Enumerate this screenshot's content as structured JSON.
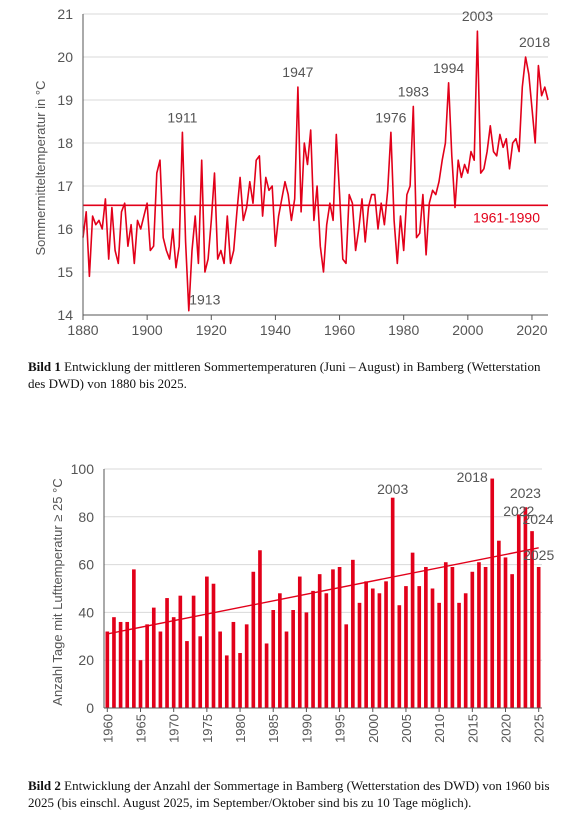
{
  "colors": {
    "line": "#e2001a",
    "bar": "#e2001a",
    "axis": "#555555",
    "text": "#555555"
  },
  "captions": {
    "bild1_label": "Bild 1",
    "bild1_text": " Entwicklung der mittleren Sommertemperaturen (Juni – August) in Bamberg (Wetter­station des DWD) von 1880 bis 2025.",
    "bild2_label": "Bild 2",
    "bild2_text": " Entwicklung der Anzahl der Sommertage in Bamberg (Wetterstation des DWD) von 1960 bis 2025 (bis einschl. August 2025, im September/Oktober sind bis zu 10 Tage mög­lich)."
  },
  "chart_data": [
    {
      "type": "line",
      "ylabel": "Sommermitteltemperatur in °C",
      "xlim": [
        1880,
        2025
      ],
      "ylim": [
        14,
        21
      ],
      "xticks": [
        1880,
        1900,
        1920,
        1940,
        1960,
        1980,
        2000,
        2020
      ],
      "yticks": [
        14,
        15,
        16,
        17,
        18,
        19,
        20,
        21
      ],
      "grid": "horizontal",
      "reference_line": {
        "label": "1961-1990",
        "value": 16.55
      },
      "annotations": [
        {
          "text": "1911",
          "x": 1911,
          "y": 18.25
        },
        {
          "text": "1913",
          "x": 1913,
          "y": 14.1
        },
        {
          "text": "1947",
          "x": 1947,
          "y": 19.3
        },
        {
          "text": "1976",
          "x": 1976,
          "y": 18.25
        },
        {
          "text": "1983",
          "x": 1983,
          "y": 18.85
        },
        {
          "text": "1994",
          "x": 1994,
          "y": 19.4
        },
        {
          "text": "2003",
          "x": 2003,
          "y": 20.6
        },
        {
          "text": "2018",
          "x": 2018,
          "y": 20.0
        }
      ],
      "x": [
        1880,
        1881,
        1882,
        1883,
        1884,
        1885,
        1886,
        1887,
        1888,
        1889,
        1890,
        1891,
        1892,
        1893,
        1894,
        1895,
        1896,
        1897,
        1898,
        1899,
        1900,
        1901,
        1902,
        1903,
        1904,
        1905,
        1906,
        1907,
        1908,
        1909,
        1910,
        1911,
        1912,
        1913,
        1914,
        1915,
        1916,
        1917,
        1918,
        1919,
        1920,
        1921,
        1922,
        1923,
        1924,
        1925,
        1926,
        1927,
        1928,
        1929,
        1930,
        1931,
        1932,
        1933,
        1934,
        1935,
        1936,
        1937,
        1938,
        1939,
        1940,
        1941,
        1942,
        1943,
        1944,
        1945,
        1946,
        1947,
        1948,
        1949,
        1950,
        1951,
        1952,
        1953,
        1954,
        1955,
        1956,
        1957,
        1958,
        1959,
        1960,
        1961,
        1962,
        1963,
        1964,
        1965,
        1966,
        1967,
        1968,
        1969,
        1970,
        1971,
        1972,
        1973,
        1974,
        1975,
        1976,
        1977,
        1978,
        1979,
        1980,
        1981,
        1982,
        1983,
        1984,
        1985,
        1986,
        1987,
        1988,
        1989,
        1990,
        1991,
        1992,
        1993,
        1994,
        1995,
        1996,
        1997,
        1998,
        1999,
        2000,
        2001,
        2002,
        2003,
        2004,
        2005,
        2006,
        2007,
        2008,
        2009,
        2010,
        2011,
        2012,
        2013,
        2014,
        2015,
        2016,
        2017,
        2018,
        2019,
        2020,
        2021,
        2022,
        2023,
        2024,
        2025
      ],
      "values": [
        15.8,
        16.4,
        14.9,
        16.3,
        16.1,
        16.2,
        16.0,
        16.7,
        15.3,
        16.5,
        15.5,
        15.2,
        16.4,
        16.6,
        15.6,
        16.1,
        15.2,
        16.2,
        16.0,
        16.3,
        16.6,
        15.5,
        15.6,
        17.3,
        17.6,
        15.8,
        15.5,
        15.3,
        16.0,
        15.1,
        15.6,
        18.25,
        15.7,
        14.1,
        15.5,
        16.3,
        15.2,
        17.6,
        15.0,
        15.3,
        16.2,
        17.3,
        15.3,
        15.5,
        15.2,
        16.3,
        15.2,
        15.5,
        16.4,
        17.2,
        16.2,
        16.5,
        17.1,
        16.6,
        17.6,
        17.7,
        16.3,
        17.2,
        16.9,
        17.0,
        15.6,
        16.3,
        16.7,
        17.1,
        16.8,
        16.2,
        16.7,
        19.3,
        16.4,
        18.0,
        17.5,
        18.3,
        16.2,
        17.0,
        15.6,
        15.0,
        16.1,
        16.6,
        16.2,
        18.2,
        16.8,
        15.3,
        15.2,
        16.8,
        16.6,
        15.5,
        16.0,
        16.7,
        15.7,
        16.5,
        16.8,
        16.8,
        16.0,
        16.6,
        16.1,
        16.9,
        18.25,
        16.2,
        15.2,
        16.3,
        15.5,
        16.8,
        17.0,
        18.85,
        15.8,
        15.9,
        16.8,
        15.4,
        16.6,
        16.9,
        16.8,
        17.1,
        17.6,
        18.0,
        19.4,
        17.7,
        16.5,
        17.6,
        17.2,
        17.5,
        17.3,
        17.8,
        17.6,
        20.6,
        17.3,
        17.4,
        17.8,
        18.4,
        17.8,
        17.7,
        18.2,
        17.9,
        18.1,
        17.4,
        18.0,
        18.1,
        17.8,
        19.3,
        20.0,
        19.6,
        18.8,
        18.0,
        19.8,
        19.1,
        19.3,
        19.0
      ]
    },
    {
      "type": "bar",
      "ylabel": "Anzahl Tage mit Lufttemperatur ≥ 25 °C",
      "ylim": [
        0,
        100
      ],
      "yticks": [
        0,
        20,
        40,
        60,
        80,
        100
      ],
      "xticks": [
        1960,
        1965,
        1970,
        1975,
        1980,
        1985,
        1990,
        1995,
        2000,
        2005,
        2010,
        2015,
        2020,
        2025
      ],
      "grid": "horizontal",
      "trend": {
        "x": [
          1960,
          2025
        ],
        "y": [
          31,
          67
        ]
      },
      "annotations": [
        {
          "text": "2003",
          "x": 2003
        },
        {
          "text": "2018",
          "x": 2018
        },
        {
          "text": "2022",
          "x": 2022
        },
        {
          "text": "2023",
          "x": 2023
        },
        {
          "text": "2024",
          "x": 2024
        },
        {
          "text": "2025",
          "x": 2025
        }
      ],
      "categories": [
        1960,
        1961,
        1962,
        1963,
        1964,
        1965,
        1966,
        1967,
        1968,
        1969,
        1970,
        1971,
        1972,
        1973,
        1974,
        1975,
        1976,
        1977,
        1978,
        1979,
        1980,
        1981,
        1982,
        1983,
        1984,
        1985,
        1986,
        1987,
        1988,
        1989,
        1990,
        1991,
        1992,
        1993,
        1994,
        1995,
        1996,
        1997,
        1998,
        1999,
        2000,
        2001,
        2002,
        2003,
        2004,
        2005,
        2006,
        2007,
        2008,
        2009,
        2010,
        2011,
        2012,
        2013,
        2014,
        2015,
        2016,
        2017,
        2018,
        2019,
        2020,
        2021,
        2022,
        2023,
        2024,
        2025
      ],
      "values": [
        32,
        38,
        36,
        36,
        58,
        20,
        35,
        42,
        32,
        46,
        38,
        47,
        28,
        47,
        30,
        55,
        52,
        32,
        22,
        36,
        23,
        35,
        57,
        66,
        27,
        41,
        48,
        32,
        41,
        55,
        40,
        49,
        56,
        48,
        58,
        59,
        35,
        62,
        44,
        53,
        50,
        48,
        53,
        88,
        43,
        51,
        65,
        51,
        59,
        50,
        44,
        61,
        59,
        44,
        48,
        57,
        61,
        59,
        96,
        70,
        63,
        56,
        81,
        84,
        74,
        59
      ]
    }
  ]
}
